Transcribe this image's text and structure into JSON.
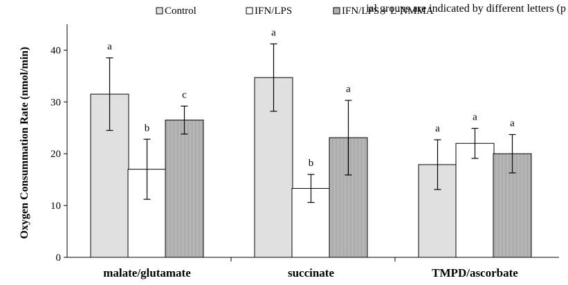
{
  "top_cut_text": "ial groups are indicated by different letters (p",
  "chart_data": {
    "type": "bar",
    "categories": [
      "malate/glutamate",
      "succinate",
      "TMPD/ascorbate"
    ],
    "ylabel": "Oxygen Consummation Rate (nmol/min)",
    "xlabel": "",
    "ylim": [
      0,
      45
    ],
    "yticks": [
      0,
      10,
      20,
      30,
      40
    ],
    "legend_position": "top",
    "series": [
      {
        "name": "Control",
        "fill": "#e0e0e0",
        "pattern": "solid",
        "values": [
          31.5,
          34.7,
          17.9
        ],
        "errors": [
          7.0,
          6.5,
          4.8
        ],
        "letters": [
          "a",
          "a",
          "a"
        ]
      },
      {
        "name": "IFN/LPS",
        "fill": "#ffffff",
        "pattern": "solid",
        "values": [
          17.0,
          13.3,
          22.0
        ],
        "errors": [
          5.8,
          2.7,
          2.9
        ],
        "letters": [
          "b",
          "b",
          "a"
        ]
      },
      {
        "name": "IFN/LPS + L-NMMA",
        "fill": "#b4b4b4",
        "pattern": "vertical-stripes",
        "values": [
          26.5,
          23.1,
          20.0
        ],
        "errors": [
          2.7,
          7.2,
          3.7
        ],
        "letters": [
          "c",
          "a",
          "a"
        ]
      }
    ]
  }
}
